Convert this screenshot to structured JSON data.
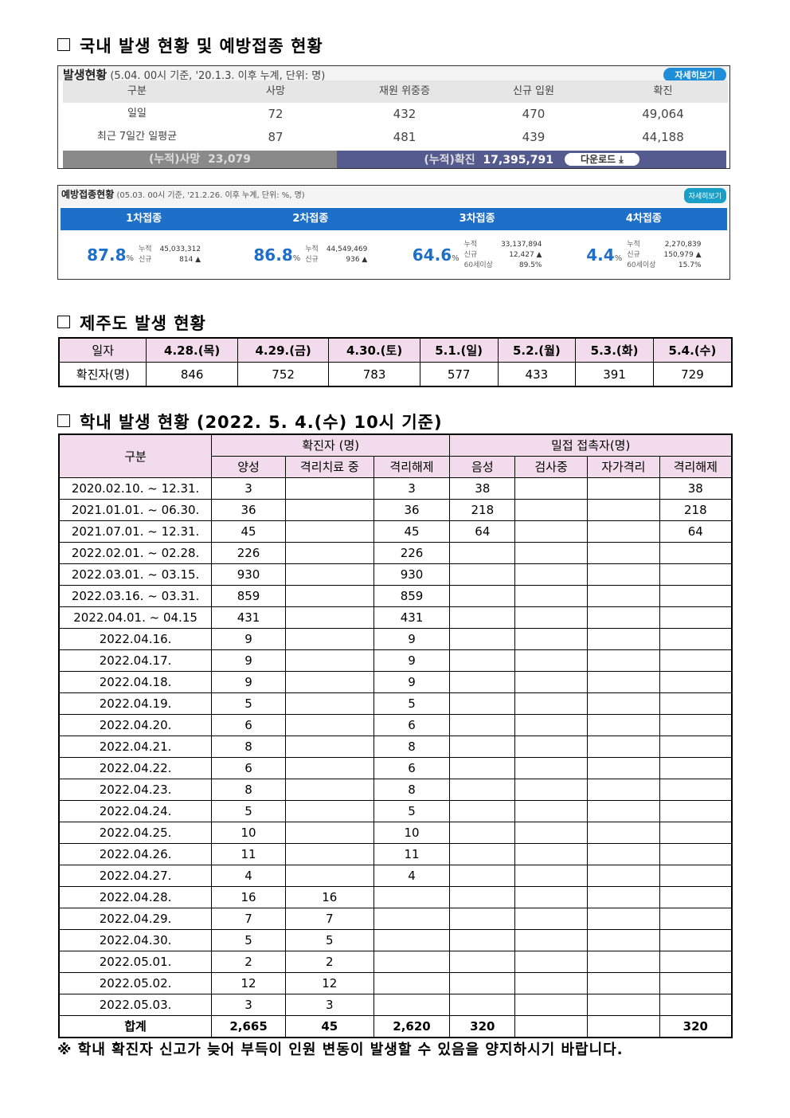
{
  "sections": {
    "domestic": "국내 발생 현황 및 예방접종 현황",
    "jeju": "제주도 발생 현황",
    "school": "학내 발생 현황 (2022. 5. 4.(수) 10시 기준)"
  },
  "domestic": {
    "title": "발생현황",
    "subtitle": "(5.04. 00시 기준, '20.1.3. 이후 누계, 단위: 명)",
    "more": "자세히보기",
    "headers": [
      "구분",
      "사망",
      "재원 위중증",
      "신규 입원",
      "확진"
    ],
    "rows": [
      [
        "일일",
        "72",
        "432",
        "470",
        "49,064"
      ],
      [
        "최근 7일간 일평균",
        "87",
        "481",
        "439",
        "44,188"
      ]
    ],
    "cum_death_label": "(누적)사망",
    "cum_death": "23,079",
    "cum_conf_label": "(누적)확진",
    "cum_conf": "17,395,791",
    "download": "다운로드 ⤓"
  },
  "vaccine": {
    "title": "예방접종현황",
    "subtitle": "(05.03. 00시 기준, '21.2.26. 이후 누계, 단위: %, 명)",
    "more": "자세히보기",
    "doses": [
      {
        "label": "1차접종",
        "pct": "87.8",
        "cum_label": "누적",
        "cum": "45,033,312",
        "new_label": "신규",
        "new": "814 ▲"
      },
      {
        "label": "2차접종",
        "pct": "86.8",
        "cum_label": "누적",
        "cum": "44,549,469",
        "new_label": "신규",
        "new": "936 ▲"
      },
      {
        "label": "3차접종",
        "pct": "64.6",
        "cum_label": "누적",
        "cum": "33,137,894",
        "new_label": "신규",
        "new": "12,427 ▲",
        "age_label": "60세이상",
        "age": "89.5%"
      },
      {
        "label": "4차접종",
        "pct": "4.4",
        "cum_label": "누적",
        "cum": "2,270,839",
        "new_label": "신규",
        "new": "150,979 ▲",
        "age_label": "60세이상",
        "age": "15.7%"
      }
    ],
    "unit": "%"
  },
  "jeju": {
    "date_label": "일자",
    "count_label": "확진자(명)",
    "dates": [
      "4.28.(목)",
      "4.29.(금)",
      "4.30.(토)",
      "5.1.(일)",
      "5.2.(월)",
      "5.3.(화)",
      "5.4.(수)"
    ],
    "counts": [
      "846",
      "752",
      "783",
      "577",
      "433",
      "391",
      "729"
    ]
  },
  "school": {
    "h_gubun": "구분",
    "h_conf": "확진자 (명)",
    "h_contact": "밀접 접촉자(명)",
    "sub": [
      "양성",
      "격리치료 중",
      "격리해제",
      "음성",
      "검사중",
      "자가격리",
      "격리해제"
    ],
    "rows": [
      [
        "2020.02.10.  ~ 12.31.",
        "3",
        "",
        "3",
        "38",
        "",
        "",
        "38"
      ],
      [
        "2021.01.01.  ~ 06.30.",
        "36",
        "",
        "36",
        "218",
        "",
        "",
        "218"
      ],
      [
        "2021.07.01.  ~ 12.31.",
        "45",
        "",
        "45",
        "64",
        "",
        "",
        "64"
      ],
      [
        "2022.02.01.  ~ 02.28.",
        "226",
        "",
        "226",
        "",
        "",
        "",
        ""
      ],
      [
        "2022.03.01.  ~ 03.15.",
        "930",
        "",
        "930",
        "",
        "",
        "",
        ""
      ],
      [
        "2022.03.16.  ~ 03.31.",
        "859",
        "",
        "859",
        "",
        "",
        "",
        ""
      ],
      [
        "2022.04.01.  ~ 04.15",
        "431",
        "",
        "431",
        "",
        "",
        "",
        ""
      ],
      [
        "2022.04.16.",
        "9",
        "",
        "9",
        "",
        "",
        "",
        ""
      ],
      [
        "2022.04.17.",
        "9",
        "",
        "9",
        "",
        "",
        "",
        ""
      ],
      [
        "2022.04.18.",
        "9",
        "",
        "9",
        "",
        "",
        "",
        ""
      ],
      [
        "2022.04.19.",
        "5",
        "",
        "5",
        "",
        "",
        "",
        ""
      ],
      [
        "2022.04.20.",
        "6",
        "",
        "6",
        "",
        "",
        "",
        ""
      ],
      [
        "2022.04.21.",
        "8",
        "",
        "8",
        "",
        "",
        "",
        ""
      ],
      [
        "2022.04.22.",
        "6",
        "",
        "6",
        "",
        "",
        "",
        ""
      ],
      [
        "2022.04.23.",
        "8",
        "",
        "8",
        "",
        "",
        "",
        ""
      ],
      [
        "2022.04.24.",
        "5",
        "",
        "5",
        "",
        "",
        "",
        ""
      ],
      [
        "2022.04.25.",
        "10",
        "",
        "10",
        "",
        "",
        "",
        ""
      ],
      [
        "2022.04.26.",
        "11",
        "",
        "11",
        "",
        "",
        "",
        ""
      ],
      [
        "2022.04.27.",
        "4",
        "",
        "4",
        "",
        "",
        "",
        ""
      ],
      [
        "2022.04.28.",
        "16",
        "16",
        "",
        "",
        "",
        "",
        ""
      ],
      [
        "2022.04.29.",
        "7",
        "7",
        "",
        "",
        "",
        "",
        ""
      ],
      [
        "2022.04.30.",
        "5",
        "5",
        "",
        "",
        "",
        "",
        ""
      ],
      [
        "2022.05.01.",
        "2",
        "2",
        "",
        "",
        "",
        "",
        ""
      ],
      [
        "2022.05.02.",
        "12",
        "12",
        "",
        "",
        "",
        "",
        ""
      ],
      [
        "2022.05.03.",
        "3",
        "3",
        "",
        "",
        "",
        "",
        ""
      ]
    ],
    "total": [
      "합계",
      "2,665",
      "45",
      "2,620",
      "320",
      "",
      "",
      "320"
    ]
  },
  "note": "※ 학내 확진자 신고가 늦어 부득이 인원 변동이 발생할 수 있음을 양지하시기 바랍니다."
}
